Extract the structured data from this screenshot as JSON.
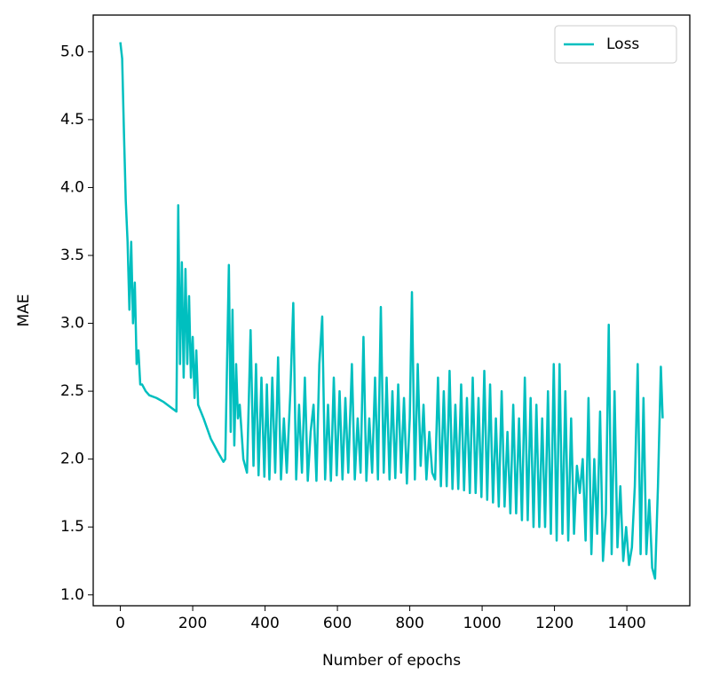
{
  "chart_data": {
    "type": "line",
    "xlabel": "Number of epochs",
    "ylabel": "MAE",
    "x": [
      0,
      5,
      10,
      15,
      20,
      25,
      30,
      35,
      40,
      45,
      50,
      55,
      60,
      70,
      80,
      100,
      120,
      140,
      155,
      160,
      165,
      170,
      175,
      180,
      185,
      190,
      195,
      200,
      205,
      210,
      215,
      230,
      250,
      270,
      285,
      290,
      300,
      305,
      310,
      315,
      320,
      325,
      330,
      340,
      350,
      360,
      368,
      375,
      382,
      390,
      398,
      405,
      412,
      420,
      428,
      436,
      444,
      452,
      460,
      470,
      478,
      486,
      494,
      502,
      510,
      518,
      526,
      534,
      542,
      550,
      558,
      566,
      574,
      582,
      590,
      598,
      606,
      614,
      622,
      630,
      640,
      648,
      656,
      664,
      672,
      680,
      688,
      696,
      704,
      712,
      720,
      728,
      736,
      744,
      752,
      760,
      768,
      776,
      784,
      792,
      800,
      806,
      814,
      822,
      830,
      838,
      846,
      854,
      862,
      870,
      878,
      886,
      894,
      902,
      910,
      918,
      926,
      934,
      942,
      950,
      958,
      966,
      974,
      982,
      990,
      998,
      1006,
      1014,
      1022,
      1030,
      1038,
      1046,
      1054,
      1062,
      1070,
      1078,
      1086,
      1094,
      1102,
      1110,
      1118,
      1126,
      1134,
      1142,
      1150,
      1158,
      1166,
      1174,
      1182,
      1190,
      1198,
      1206,
      1214,
      1222,
      1230,
      1238,
      1246,
      1254,
      1262,
      1270,
      1278,
      1286,
      1294,
      1302,
      1310,
      1318,
      1326,
      1334,
      1342,
      1350,
      1358,
      1366,
      1374,
      1382,
      1390,
      1398,
      1406,
      1414,
      1422,
      1430,
      1438,
      1446,
      1454,
      1462,
      1470,
      1478,
      1486,
      1494,
      1499
    ],
    "series": [
      {
        "name": "Loss",
        "color": "#00bfbf",
        "values": [
          5.07,
          4.95,
          4.4,
          3.9,
          3.6,
          3.1,
          3.6,
          3.0,
          3.3,
          2.7,
          2.8,
          2.55,
          2.55,
          2.5,
          2.47,
          2.45,
          2.42,
          2.38,
          2.35,
          3.87,
          2.7,
          3.45,
          2.6,
          3.4,
          2.7,
          3.2,
          2.6,
          2.9,
          2.45,
          2.8,
          2.4,
          2.3,
          2.15,
          2.05,
          1.98,
          2.0,
          3.43,
          2.2,
          3.1,
          2.1,
          2.7,
          2.3,
          2.4,
          2.0,
          1.9,
          2.95,
          1.95,
          2.7,
          1.88,
          2.6,
          1.87,
          2.55,
          1.85,
          2.6,
          1.9,
          2.75,
          1.85,
          2.3,
          1.9,
          2.5,
          3.15,
          1.85,
          2.4,
          1.9,
          2.6,
          1.84,
          2.2,
          2.4,
          1.84,
          2.7,
          3.05,
          1.85,
          2.4,
          1.84,
          2.6,
          1.88,
          2.5,
          1.85,
          2.45,
          1.9,
          2.7,
          1.85,
          2.3,
          1.9,
          2.9,
          1.84,
          2.3,
          1.9,
          2.6,
          1.85,
          3.12,
          1.9,
          2.6,
          1.85,
          2.5,
          1.86,
          2.55,
          1.9,
          2.45,
          1.82,
          2.3,
          3.23,
          1.85,
          2.7,
          1.95,
          2.4,
          1.85,
          2.2,
          1.9,
          1.85,
          2.6,
          1.8,
          2.5,
          1.8,
          2.65,
          1.78,
          2.4,
          1.78,
          2.55,
          1.77,
          2.45,
          1.75,
          2.6,
          1.75,
          2.45,
          1.72,
          2.65,
          1.7,
          2.55,
          1.68,
          2.3,
          1.65,
          2.5,
          1.65,
          2.2,
          1.6,
          2.4,
          1.6,
          2.3,
          1.55,
          2.6,
          1.55,
          2.45,
          1.5,
          2.4,
          1.5,
          2.3,
          1.5,
          2.5,
          1.45,
          2.7,
          1.4,
          2.7,
          1.45,
          2.5,
          1.4,
          2.3,
          1.45,
          1.95,
          1.75,
          2.0,
          1.4,
          2.45,
          1.3,
          2.0,
          1.45,
          2.35,
          1.25,
          1.6,
          2.99,
          1.3,
          2.5,
          1.35,
          1.8,
          1.25,
          1.5,
          1.22,
          1.35,
          1.8,
          2.7,
          1.3,
          2.45,
          1.3,
          1.7,
          1.2,
          1.12,
          1.8,
          2.68,
          2.3
        ]
      }
    ],
    "xlim": [
      -75,
      1574
    ],
    "ylim": [
      0.92,
      5.27
    ],
    "xticks": [
      0,
      200,
      400,
      600,
      800,
      1000,
      1200,
      1400
    ],
    "yticks": [
      {
        "value": 1,
        "label": "1.0"
      },
      1.5,
      {
        "value": 2,
        "label": "2.0"
      },
      2.5,
      {
        "value": 3,
        "label": "3.0"
      },
      3.5,
      {
        "value": 4,
        "label": "4.0"
      },
      4.5,
      {
        "value": 5,
        "label": "5.0"
      }
    ],
    "legend": "upper right"
  }
}
